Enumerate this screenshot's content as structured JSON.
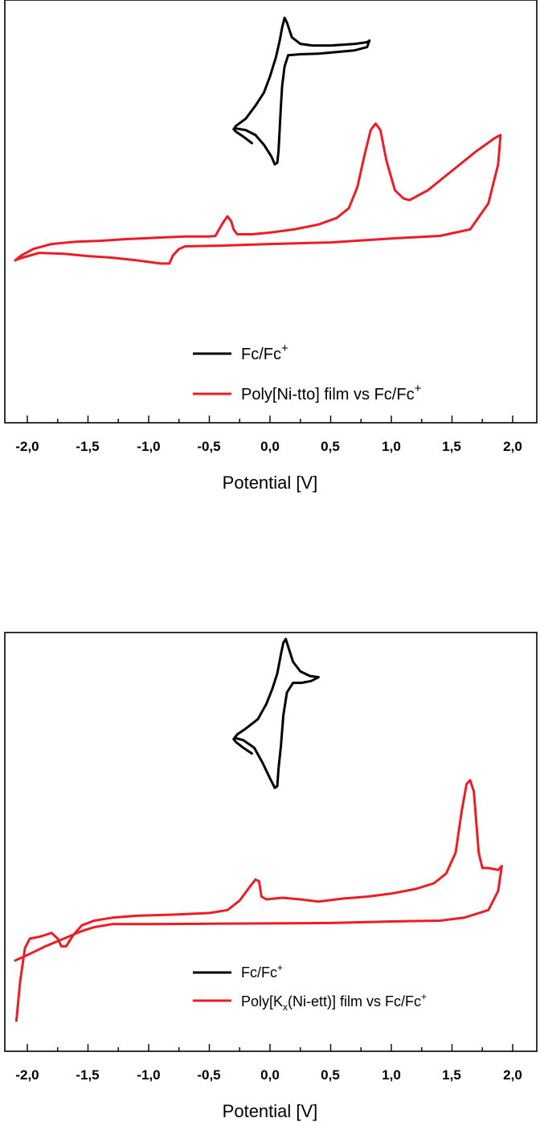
{
  "colors": {
    "fc": "#000000",
    "film": "#ee1c25",
    "axis": "#000000"
  },
  "chart_data": [
    {
      "type": "line",
      "xlabel": "Potential [V]",
      "ylabel": "",
      "xlim": [
        -2.12,
        2.12
      ],
      "xticks": [
        "-2,0",
        "-1,5",
        "-1,0",
        "-0,5",
        "0,0",
        "0,5",
        "1,0",
        "1,5",
        "2,0"
      ],
      "grid": false,
      "legend_position": "lower-center",
      "legend": {
        "fc": {
          "main": "Fc/Fc",
          "sup": "+"
        },
        "film": {
          "main": "Poly[Ni-tto] film vs Fc/Fc",
          "sup": "+"
        }
      },
      "series": [
        {
          "key": "fc",
          "points": [
            [
              -0.15,
              0.585
            ],
            [
              -0.22,
              0.605
            ],
            [
              -0.28,
              0.62
            ],
            [
              -0.3,
              0.628
            ],
            [
              -0.28,
              0.638
            ],
            [
              -0.2,
              0.66
            ],
            [
              -0.12,
              0.7
            ],
            [
              -0.05,
              0.74
            ],
            [
              0.0,
              0.79
            ],
            [
              0.05,
              0.85
            ],
            [
              0.08,
              0.9
            ],
            [
              0.1,
              0.94
            ],
            [
              0.12,
              0.97
            ],
            [
              0.14,
              0.955
            ],
            [
              0.18,
              0.91
            ],
            [
              0.25,
              0.89
            ],
            [
              0.35,
              0.885
            ],
            [
              0.5,
              0.885
            ],
            [
              0.7,
              0.89
            ],
            [
              0.8,
              0.895
            ],
            [
              0.82,
              0.9
            ],
            [
              0.8,
              0.88
            ],
            [
              0.7,
              0.87
            ],
            [
              0.55,
              0.865
            ],
            [
              0.4,
              0.86
            ],
            [
              0.25,
              0.858
            ],
            [
              0.15,
              0.855
            ],
            [
              0.12,
              0.82
            ],
            [
              0.1,
              0.76
            ],
            [
              0.09,
              0.7
            ],
            [
              0.08,
              0.63
            ],
            [
              0.07,
              0.56
            ],
            [
              0.06,
              0.525
            ],
            [
              0.04,
              0.52
            ],
            [
              0.01,
              0.545
            ],
            [
              -0.05,
              0.58
            ],
            [
              -0.12,
              0.61
            ],
            [
              -0.2,
              0.625
            ],
            [
              -0.28,
              0.63
            ]
          ]
        },
        {
          "key": "film",
          "points": [
            [
              -2.1,
              0.225
            ],
            [
              -2.05,
              0.24
            ],
            [
              -1.95,
              0.26
            ],
            [
              -1.8,
              0.275
            ],
            [
              -1.6,
              0.282
            ],
            [
              -1.4,
              0.285
            ],
            [
              -1.2,
              0.29
            ],
            [
              -0.9,
              0.295
            ],
            [
              -0.7,
              0.298
            ],
            [
              -0.5,
              0.298
            ],
            [
              -0.45,
              0.3
            ],
            [
              -0.42,
              0.32
            ],
            [
              -0.38,
              0.345
            ],
            [
              -0.35,
              0.36
            ],
            [
              -0.32,
              0.345
            ],
            [
              -0.3,
              0.32
            ],
            [
              -0.27,
              0.305
            ],
            [
              -0.15,
              0.305
            ],
            [
              0.0,
              0.31
            ],
            [
              0.2,
              0.32
            ],
            [
              0.4,
              0.335
            ],
            [
              0.55,
              0.355
            ],
            [
              0.65,
              0.385
            ],
            [
              0.72,
              0.45
            ],
            [
              0.78,
              0.55
            ],
            [
              0.83,
              0.625
            ],
            [
              0.87,
              0.645
            ],
            [
              0.91,
              0.625
            ],
            [
              0.96,
              0.53
            ],
            [
              1.03,
              0.44
            ],
            [
              1.1,
              0.415
            ],
            [
              1.15,
              0.41
            ],
            [
              1.3,
              0.44
            ],
            [
              1.5,
              0.5
            ],
            [
              1.7,
              0.56
            ],
            [
              1.85,
              0.6
            ],
            [
              1.9,
              0.61
            ],
            [
              1.88,
              0.52
            ],
            [
              1.8,
              0.4
            ],
            [
              1.65,
              0.32
            ],
            [
              1.4,
              0.3
            ],
            [
              1.0,
              0.292
            ],
            [
              0.5,
              0.28
            ],
            [
              0.0,
              0.275
            ],
            [
              -0.4,
              0.27
            ],
            [
              -0.7,
              0.268
            ],
            [
              -0.75,
              0.26
            ],
            [
              -0.8,
              0.24
            ],
            [
              -0.83,
              0.215
            ],
            [
              -0.9,
              0.215
            ],
            [
              -1.1,
              0.225
            ],
            [
              -1.3,
              0.233
            ],
            [
              -1.5,
              0.238
            ],
            [
              -1.7,
              0.245
            ],
            [
              -1.9,
              0.248
            ],
            [
              -2.05,
              0.232
            ],
            [
              -2.1,
              0.225
            ]
          ]
        }
      ]
    },
    {
      "type": "line",
      "xlabel": "Potential [V]",
      "ylabel": "",
      "xlim": [
        -2.12,
        2.12
      ],
      "xticks": [
        "-2,0",
        "-1,5",
        "-1,0",
        "-0,5",
        "0,0",
        "0,5",
        "1,0",
        "1,5",
        "2,0"
      ],
      "grid": false,
      "legend_position": "lower-center",
      "legend": {
        "fc": {
          "main": "Fc/Fc",
          "sup": "+"
        },
        "film": {
          "pre": "Poly[K",
          "sub": "x",
          "post": "(Ni-ett)] film vs Fc/Fc",
          "sup": "+"
        }
      },
      "series": [
        {
          "key": "fc",
          "points": [
            [
              -0.15,
              0.7
            ],
            [
              -0.22,
              0.715
            ],
            [
              -0.28,
              0.73
            ],
            [
              -0.3,
              0.738
            ],
            [
              -0.27,
              0.75
            ],
            [
              -0.2,
              0.765
            ],
            [
              -0.1,
              0.79
            ],
            [
              -0.03,
              0.83
            ],
            [
              0.02,
              0.87
            ],
            [
              0.06,
              0.91
            ],
            [
              0.09,
              0.96
            ],
            [
              0.11,
              0.99
            ],
            [
              0.13,
              1.0
            ],
            [
              0.15,
              0.98
            ],
            [
              0.19,
              0.94
            ],
            [
              0.25,
              0.915
            ],
            [
              0.33,
              0.903
            ],
            [
              0.4,
              0.9
            ],
            [
              0.34,
              0.89
            ],
            [
              0.26,
              0.885
            ],
            [
              0.19,
              0.885
            ],
            [
              0.14,
              0.86
            ],
            [
              0.11,
              0.8
            ],
            [
              0.09,
              0.72
            ],
            [
              0.07,
              0.66
            ],
            [
              0.06,
              0.615
            ],
            [
              0.04,
              0.61
            ],
            [
              0.0,
              0.635
            ],
            [
              -0.06,
              0.675
            ],
            [
              -0.13,
              0.715
            ],
            [
              -0.22,
              0.735
            ],
            [
              -0.28,
              0.74
            ]
          ]
        },
        {
          "key": "film",
          "points": [
            [
              -2.09,
              0.0
            ],
            [
              -2.06,
              0.1
            ],
            [
              -2.02,
              0.19
            ],
            [
              -1.98,
              0.215
            ],
            [
              -1.9,
              0.22
            ],
            [
              -1.8,
              0.23
            ],
            [
              -1.75,
              0.215
            ],
            [
              -1.72,
              0.195
            ],
            [
              -1.68,
              0.195
            ],
            [
              -1.62,
              0.225
            ],
            [
              -1.55,
              0.25
            ],
            [
              -1.45,
              0.262
            ],
            [
              -1.3,
              0.27
            ],
            [
              -1.1,
              0.275
            ],
            [
              -0.8,
              0.278
            ],
            [
              -0.5,
              0.282
            ],
            [
              -0.35,
              0.29
            ],
            [
              -0.25,
              0.315
            ],
            [
              -0.18,
              0.345
            ],
            [
              -0.12,
              0.37
            ],
            [
              -0.09,
              0.365
            ],
            [
              -0.07,
              0.325
            ],
            [
              -0.03,
              0.318
            ],
            [
              0.1,
              0.322
            ],
            [
              0.25,
              0.318
            ],
            [
              0.4,
              0.312
            ],
            [
              0.6,
              0.32
            ],
            [
              0.8,
              0.325
            ],
            [
              1.0,
              0.333
            ],
            [
              1.2,
              0.345
            ],
            [
              1.35,
              0.36
            ],
            [
              1.45,
              0.385
            ],
            [
              1.53,
              0.44
            ],
            [
              1.58,
              0.55
            ],
            [
              1.62,
              0.62
            ],
            [
              1.65,
              0.63
            ],
            [
              1.68,
              0.6
            ],
            [
              1.72,
              0.44
            ],
            [
              1.75,
              0.4
            ],
            [
              1.8,
              0.4
            ],
            [
              1.88,
              0.395
            ],
            [
              1.91,
              0.405
            ],
            [
              1.88,
              0.34
            ],
            [
              1.8,
              0.29
            ],
            [
              1.6,
              0.27
            ],
            [
              1.4,
              0.262
            ],
            [
              1.0,
              0.26
            ],
            [
              0.5,
              0.256
            ],
            [
              0.0,
              0.255
            ],
            [
              -0.5,
              0.254
            ],
            [
              -1.0,
              0.253
            ],
            [
              -1.3,
              0.253
            ],
            [
              -1.45,
              0.245
            ],
            [
              -1.55,
              0.235
            ],
            [
              -1.7,
              0.215
            ],
            [
              -1.85,
              0.195
            ],
            [
              -2.0,
              0.172
            ],
            [
              -2.1,
              0.158
            ]
          ]
        }
      ]
    }
  ]
}
